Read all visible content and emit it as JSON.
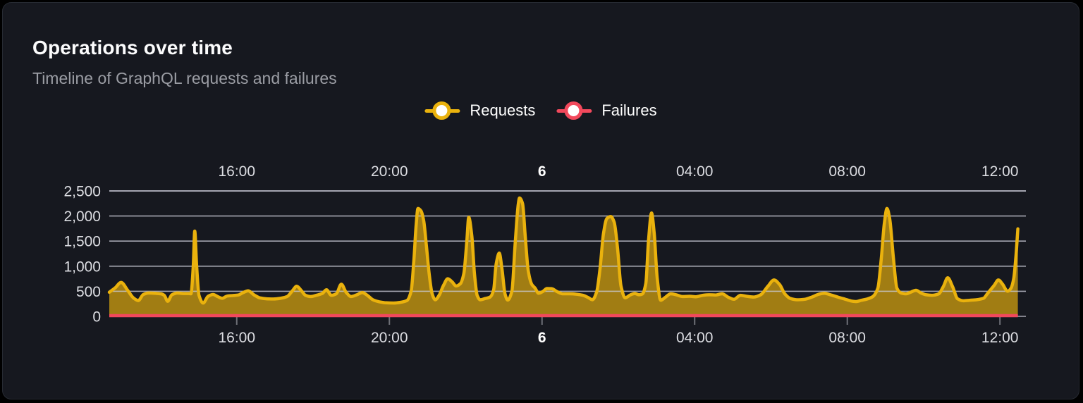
{
  "panel": {
    "title": "Operations over time",
    "subtitle": "Timeline of GraphQL requests and failures"
  },
  "legend": {
    "items": [
      {
        "label": "Requests",
        "color": "#EAB20D"
      },
      {
        "label": "Failures",
        "color": "#F2495C"
      }
    ]
  },
  "colors": {
    "page_bg": "#000000",
    "card_bg": "#16181F",
    "card_border": "#272B33",
    "grid": "rgba(201,203,214,0.8)",
    "axis_tick": "#6E7077",
    "tick_label": "#DDDEE3",
    "requests_line": "#EAB20D",
    "requests_fill_opacity": 0.66,
    "failures_line": "#F2495C"
  },
  "chart_data": {
    "type": "area",
    "title": "Operations over time",
    "subtitle": "Timeline of GraphQL requests and failures",
    "x_unit": "hours since window start (~12:40 day 5, spans ~24h to ~12:30 day 6)",
    "xlim": [
      0,
      24.02
    ],
    "ylim": [
      0,
      2500
    ],
    "grid": true,
    "legend_position": "top-center",
    "x_ticks": [
      {
        "h": 3.34,
        "label": "16:00",
        "bold": false
      },
      {
        "h": 7.34,
        "label": "20:00",
        "bold": false
      },
      {
        "h": 11.34,
        "label": "6",
        "bold": true
      },
      {
        "h": 15.34,
        "label": "04:00",
        "bold": false
      },
      {
        "h": 19.34,
        "label": "08:00",
        "bold": false
      },
      {
        "h": 23.34,
        "label": "12:00",
        "bold": false
      }
    ],
    "y_ticks": [
      {
        "v": 0,
        "label": "0"
      },
      {
        "v": 500,
        "label": "500"
      },
      {
        "v": 1000,
        "label": "1,000"
      },
      {
        "v": 1500,
        "label": "1,500"
      },
      {
        "v": 2000,
        "label": "2,000"
      },
      {
        "v": 2500,
        "label": "2,500"
      }
    ],
    "series": [
      {
        "name": "Requests",
        "points": [
          [
            0,
            480
          ],
          [
            0.15,
            565
          ],
          [
            0.31,
            675
          ],
          [
            0.48,
            520
          ],
          [
            0.63,
            370
          ],
          [
            0.76,
            315
          ],
          [
            0.89,
            435
          ],
          [
            1.03,
            465
          ],
          [
            1.2,
            460
          ],
          [
            1.35,
            450
          ],
          [
            1.44,
            420
          ],
          [
            1.53,
            300
          ],
          [
            1.64,
            430
          ],
          [
            1.79,
            465
          ],
          [
            1.94,
            455
          ],
          [
            2.09,
            455
          ],
          [
            2.14,
            450
          ],
          [
            2.2,
            1000
          ],
          [
            2.24,
            1700
          ],
          [
            2.29,
            1000
          ],
          [
            2.35,
            420
          ],
          [
            2.46,
            265
          ],
          [
            2.59,
            400
          ],
          [
            2.72,
            435
          ],
          [
            2.85,
            390
          ],
          [
            2.96,
            360
          ],
          [
            3.09,
            405
          ],
          [
            3.23,
            415
          ],
          [
            3.38,
            425
          ],
          [
            3.51,
            475
          ],
          [
            3.64,
            510
          ],
          [
            3.79,
            430
          ],
          [
            3.94,
            370
          ],
          [
            4.12,
            350
          ],
          [
            4.3,
            345
          ],
          [
            4.49,
            360
          ],
          [
            4.66,
            395
          ],
          [
            4.8,
            510
          ],
          [
            4.91,
            600
          ],
          [
            5.03,
            515
          ],
          [
            5.14,
            420
          ],
          [
            5.28,
            395
          ],
          [
            5.43,
            420
          ],
          [
            5.58,
            455
          ],
          [
            5.69,
            530
          ],
          [
            5.82,
            420
          ],
          [
            5.95,
            450
          ],
          [
            6.08,
            640
          ],
          [
            6.21,
            475
          ],
          [
            6.34,
            395
          ],
          [
            6.49,
            430
          ],
          [
            6.63,
            475
          ],
          [
            6.76,
            420
          ],
          [
            6.91,
            330
          ],
          [
            7.08,
            290
          ],
          [
            7.26,
            270
          ],
          [
            7.45,
            265
          ],
          [
            7.63,
            280
          ],
          [
            7.8,
            315
          ],
          [
            7.91,
            500
          ],
          [
            7.98,
            1100
          ],
          [
            8.04,
            1800
          ],
          [
            8.09,
            2150
          ],
          [
            8.17,
            2100
          ],
          [
            8.24,
            1900
          ],
          [
            8.31,
            1400
          ],
          [
            8.39,
            800
          ],
          [
            8.46,
            450
          ],
          [
            8.54,
            330
          ],
          [
            8.65,
            430
          ],
          [
            8.76,
            620
          ],
          [
            8.87,
            750
          ],
          [
            8.98,
            690
          ],
          [
            9.09,
            605
          ],
          [
            9.2,
            650
          ],
          [
            9.29,
            850
          ],
          [
            9.37,
            1500
          ],
          [
            9.42,
            1975
          ],
          [
            9.5,
            1600
          ],
          [
            9.57,
            850
          ],
          [
            9.64,
            420
          ],
          [
            9.72,
            330
          ],
          [
            9.85,
            355
          ],
          [
            9.98,
            385
          ],
          [
            10.07,
            520
          ],
          [
            10.14,
            1050
          ],
          [
            10.22,
            1260
          ],
          [
            10.29,
            950
          ],
          [
            10.37,
            450
          ],
          [
            10.44,
            325
          ],
          [
            10.55,
            500
          ],
          [
            10.64,
            1500
          ],
          [
            10.72,
            2250
          ],
          [
            10.75,
            2360
          ],
          [
            10.83,
            2250
          ],
          [
            10.9,
            1600
          ],
          [
            10.98,
            900
          ],
          [
            11.07,
            640
          ],
          [
            11.16,
            560
          ],
          [
            11.25,
            460
          ],
          [
            11.36,
            495
          ],
          [
            11.47,
            555
          ],
          [
            11.6,
            550
          ],
          [
            11.73,
            495
          ],
          [
            11.88,
            450
          ],
          [
            12.07,
            450
          ],
          [
            12.25,
            440
          ],
          [
            12.41,
            420
          ],
          [
            12.55,
            375
          ],
          [
            12.66,
            330
          ],
          [
            12.77,
            480
          ],
          [
            12.86,
            950
          ],
          [
            12.95,
            1650
          ],
          [
            13.04,
            1950
          ],
          [
            13.14,
            1990
          ],
          [
            13.23,
            1880
          ],
          [
            13.32,
            1350
          ],
          [
            13.41,
            600
          ],
          [
            13.52,
            370
          ],
          [
            13.65,
            425
          ],
          [
            13.77,
            455
          ],
          [
            13.88,
            430
          ],
          [
            13.97,
            445
          ],
          [
            14.06,
            650
          ],
          [
            14.13,
            1500
          ],
          [
            14.21,
            2060
          ],
          [
            14.28,
            1650
          ],
          [
            14.36,
            750
          ],
          [
            14.45,
            320
          ],
          [
            14.58,
            385
          ],
          [
            14.71,
            450
          ],
          [
            14.86,
            430
          ],
          [
            15.02,
            395
          ],
          [
            15.21,
            400
          ],
          [
            15.37,
            390
          ],
          [
            15.56,
            420
          ],
          [
            15.72,
            430
          ],
          [
            15.89,
            425
          ],
          [
            16.06,
            450
          ],
          [
            16.22,
            380
          ],
          [
            16.37,
            340
          ],
          [
            16.54,
            420
          ],
          [
            16.7,
            400
          ],
          [
            16.89,
            385
          ],
          [
            17.07,
            430
          ],
          [
            17.26,
            600
          ],
          [
            17.42,
            725
          ],
          [
            17.57,
            630
          ],
          [
            17.7,
            450
          ],
          [
            17.85,
            355
          ],
          [
            18.03,
            330
          ],
          [
            18.22,
            340
          ],
          [
            18.4,
            380
          ],
          [
            18.59,
            440
          ],
          [
            18.74,
            460
          ],
          [
            18.9,
            430
          ],
          [
            19.09,
            385
          ],
          [
            19.27,
            345
          ],
          [
            19.45,
            305
          ],
          [
            19.57,
            295
          ],
          [
            19.71,
            320
          ],
          [
            19.86,
            345
          ],
          [
            20.01,
            395
          ],
          [
            20.14,
            560
          ],
          [
            20.23,
            1150
          ],
          [
            20.31,
            1850
          ],
          [
            20.38,
            2150
          ],
          [
            20.45,
            1950
          ],
          [
            20.55,
            1150
          ],
          [
            20.64,
            560
          ],
          [
            20.75,
            465
          ],
          [
            20.88,
            450
          ],
          [
            21.01,
            485
          ],
          [
            21.14,
            520
          ],
          [
            21.27,
            465
          ],
          [
            21.41,
            430
          ],
          [
            21.56,
            420
          ],
          [
            21.73,
            445
          ],
          [
            21.86,
            600
          ],
          [
            21.97,
            770
          ],
          [
            22.1,
            590
          ],
          [
            22.23,
            350
          ],
          [
            22.38,
            310
          ],
          [
            22.54,
            320
          ],
          [
            22.72,
            330
          ],
          [
            22.91,
            360
          ],
          [
            23.01,
            450
          ],
          [
            23.19,
            620
          ],
          [
            23.3,
            725
          ],
          [
            23.41,
            640
          ],
          [
            23.54,
            500
          ],
          [
            23.63,
            560
          ],
          [
            23.7,
            750
          ],
          [
            23.76,
            1200
          ],
          [
            23.81,
            1745
          ]
        ]
      },
      {
        "name": "Failures",
        "points": [
          [
            0,
            0
          ],
          [
            23.81,
            0
          ]
        ]
      }
    ]
  }
}
